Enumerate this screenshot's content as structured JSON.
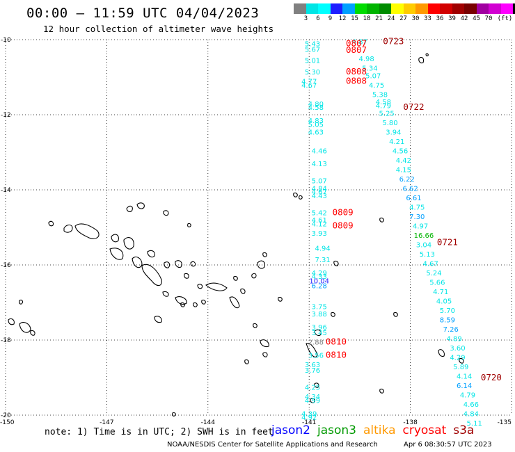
{
  "header": {
    "title": "00:00 – 11:59 UTC 04/04/2023",
    "subtitle": "12 hour collection of altimeter wave heights"
  },
  "colorbar": {
    "colors": [
      "#808080",
      "#00e5e5",
      "#00ffff",
      "#1e1eff",
      "#00a0ff",
      "#00dc00",
      "#00b400",
      "#008c00",
      "#ffff00",
      "#ffcc00",
      "#ff9900",
      "#ff0000",
      "#d20000",
      "#a00000",
      "#780000",
      "#a000a0",
      "#d200d2",
      "#ff00ff",
      "#000000"
    ],
    "labels": [
      "3",
      "6",
      "9",
      "12",
      "15",
      "18",
      "21",
      "24",
      "27",
      "30",
      "33",
      "36",
      "39",
      "42",
      "45",
      "70",
      "(ft)"
    ]
  },
  "axes": {
    "x_ticks": [
      "-150",
      "-147",
      "-144",
      "-141",
      "-138",
      "-135"
    ],
    "y_ticks": [
      "-10",
      "-12",
      "-14",
      "-16",
      "-18",
      "-20"
    ],
    "lon_range": [
      -150,
      -135
    ],
    "lat_range": [
      -20,
      -10
    ]
  },
  "swh_readings": [
    {
      "lon": -140.9,
      "lat": -10.1,
      "v": "5.43",
      "c": "#00e5e5"
    },
    {
      "lon": -140.9,
      "lat": -10.25,
      "v": "5.67",
      "c": "#00e5e5"
    },
    {
      "lon": -140.9,
      "lat": -10.55,
      "v": "5.01",
      "c": "#00e5e5"
    },
    {
      "lon": -140.9,
      "lat": -10.85,
      "v": "5.30",
      "c": "#00e5e5"
    },
    {
      "lon": -141.0,
      "lat": -11.1,
      "v": "4.77",
      "c": "#00e5e5"
    },
    {
      "lon": -141.0,
      "lat": -11.2,
      "v": "4.67",
      "c": "#00e5e5"
    },
    {
      "lon": -140.8,
      "lat": -11.7,
      "v": "4.80",
      "c": "#00e5e5"
    },
    {
      "lon": -140.8,
      "lat": -11.8,
      "v": "4.58",
      "c": "#00e5e5"
    },
    {
      "lon": -140.8,
      "lat": -12.15,
      "v": "4.83",
      "c": "#00e5e5"
    },
    {
      "lon": -140.8,
      "lat": -12.25,
      "v": "5.05",
      "c": "#00e5e5"
    },
    {
      "lon": -140.8,
      "lat": -12.45,
      "v": "4.63",
      "c": "#00e5e5"
    },
    {
      "lon": -140.7,
      "lat": -12.95,
      "v": "4.46",
      "c": "#00e5e5"
    },
    {
      "lon": -140.7,
      "lat": -13.3,
      "v": "4.13",
      "c": "#00e5e5"
    },
    {
      "lon": -140.7,
      "lat": -13.75,
      "v": "5.07",
      "c": "#00e5e5"
    },
    {
      "lon": -140.7,
      "lat": -13.95,
      "v": "4.84",
      "c": "#00e5e5"
    },
    {
      "lon": -140.7,
      "lat": -14.05,
      "v": "4.67",
      "c": "#00e5e5"
    },
    {
      "lon": -140.7,
      "lat": -14.15,
      "v": "4.43",
      "c": "#00e5e5"
    },
    {
      "lon": -140.7,
      "lat": -14.6,
      "v": "5.42",
      "c": "#00e5e5"
    },
    {
      "lon": -140.7,
      "lat": -14.8,
      "v": "4.61",
      "c": "#00e5e5"
    },
    {
      "lon": -140.7,
      "lat": -14.9,
      "v": "4.12",
      "c": "#00e5e5"
    },
    {
      "lon": -140.7,
      "lat": -15.15,
      "v": "3.93",
      "c": "#00e5e5"
    },
    {
      "lon": -140.6,
      "lat": -15.55,
      "v": "4.94",
      "c": "#00e5e5"
    },
    {
      "lon": -140.6,
      "lat": -15.85,
      "v": "7.31",
      "c": "#00e5e5"
    },
    {
      "lon": -140.7,
      "lat": -16.2,
      "v": "4.29",
      "c": "#00e5e5"
    },
    {
      "lon": -140.7,
      "lat": -16.3,
      "v": "4.33",
      "c": "#00e5e5"
    },
    {
      "lon": -140.7,
      "lat": -16.42,
      "v": "10.04",
      "c": "#1e1eff"
    },
    {
      "lon": -140.7,
      "lat": -16.55,
      "v": "6.28",
      "c": "#00a0ff"
    },
    {
      "lon": -140.7,
      "lat": -17.1,
      "v": "3.75",
      "c": "#00e5e5"
    },
    {
      "lon": -140.7,
      "lat": -17.3,
      "v": "3.88",
      "c": "#00e5e5"
    },
    {
      "lon": -140.7,
      "lat": -17.65,
      "v": "3.96",
      "c": "#00e5e5"
    },
    {
      "lon": -140.7,
      "lat": -17.8,
      "v": "3.45",
      "c": "#00e5e5"
    },
    {
      "lon": -140.8,
      "lat": -18.05,
      "v": "2.88",
      "c": "#808080"
    },
    {
      "lon": -140.8,
      "lat": -18.4,
      "v": "3.56",
      "c": "#00e5e5"
    },
    {
      "lon": -140.9,
      "lat": -18.65,
      "v": "3.63",
      "c": "#00e5e5"
    },
    {
      "lon": -140.9,
      "lat": -18.8,
      "v": "3.76",
      "c": "#00e5e5"
    },
    {
      "lon": -140.9,
      "lat": -19.25,
      "v": "4.25",
      "c": "#00e5e5"
    },
    {
      "lon": -140.9,
      "lat": -19.5,
      "v": "4.34",
      "c": "#00e5e5"
    },
    {
      "lon": -140.9,
      "lat": -19.6,
      "v": "4.99",
      "c": "#00e5e5"
    },
    {
      "lon": -141.0,
      "lat": -19.95,
      "v": "4.39",
      "c": "#00e5e5"
    },
    {
      "lon": -141.0,
      "lat": -20.05,
      "v": "4.92",
      "c": "#00e5e5"
    },
    {
      "lon": -139.5,
      "lat": -10.05,
      "v": "4.87",
      "c": "#00e5e5"
    },
    {
      "lon": -139.3,
      "lat": -10.5,
      "v": "4.98",
      "c": "#00e5e5"
    },
    {
      "lon": -139.2,
      "lat": -10.75,
      "v": "5.34",
      "c": "#00e5e5"
    },
    {
      "lon": -139.1,
      "lat": -10.95,
      "v": "5.07",
      "c": "#00e5e5"
    },
    {
      "lon": -139.0,
      "lat": -11.2,
      "v": "4.75",
      "c": "#00e5e5"
    },
    {
      "lon": -138.9,
      "lat": -11.45,
      "v": "5.38",
      "c": "#00e5e5"
    },
    {
      "lon": -138.8,
      "lat": -11.65,
      "v": "4.58",
      "c": "#00e5e5"
    },
    {
      "lon": -138.8,
      "lat": -11.75,
      "v": "4.79",
      "c": "#00e5e5"
    },
    {
      "lon": -138.7,
      "lat": -11.95,
      "v": "5.25",
      "c": "#00e5e5"
    },
    {
      "lon": -138.6,
      "lat": -12.2,
      "v": "5.80",
      "c": "#00e5e5"
    },
    {
      "lon": -138.5,
      "lat": -12.45,
      "v": "3.94",
      "c": "#00e5e5"
    },
    {
      "lon": -138.4,
      "lat": -12.7,
      "v": "4.21",
      "c": "#00e5e5"
    },
    {
      "lon": -138.3,
      "lat": -12.95,
      "v": "4.56",
      "c": "#00e5e5"
    },
    {
      "lon": -138.2,
      "lat": -13.2,
      "v": "4.42",
      "c": "#00e5e5"
    },
    {
      "lon": -138.2,
      "lat": -13.45,
      "v": "4.15",
      "c": "#00e5e5"
    },
    {
      "lon": -138.1,
      "lat": -13.7,
      "v": "6.22",
      "c": "#00a0ff"
    },
    {
      "lon": -138.0,
      "lat": -13.95,
      "v": "6.62",
      "c": "#00a0ff"
    },
    {
      "lon": -137.9,
      "lat": -14.2,
      "v": "6.61",
      "c": "#00a0ff"
    },
    {
      "lon": -137.8,
      "lat": -14.45,
      "v": "4.75",
      "c": "#00e5e5"
    },
    {
      "lon": -137.8,
      "lat": -14.7,
      "v": "7.30",
      "c": "#00a0ff"
    },
    {
      "lon": -137.7,
      "lat": -14.95,
      "v": "4.97",
      "c": "#00e5e5"
    },
    {
      "lon": -137.6,
      "lat": -15.2,
      "v": "16.66",
      "c": "#00b400"
    },
    {
      "lon": -137.6,
      "lat": -15.45,
      "v": "3.04",
      "c": "#00e5e5"
    },
    {
      "lon": -137.5,
      "lat": -15.7,
      "v": "5.13",
      "c": "#00e5e5"
    },
    {
      "lon": -137.4,
      "lat": -15.95,
      "v": "4.67",
      "c": "#00e5e5"
    },
    {
      "lon": -137.3,
      "lat": -16.2,
      "v": "5.24",
      "c": "#00e5e5"
    },
    {
      "lon": -137.2,
      "lat": -16.45,
      "v": "5.66",
      "c": "#00e5e5"
    },
    {
      "lon": -137.1,
      "lat": -16.7,
      "v": "4.71",
      "c": "#00e5e5"
    },
    {
      "lon": -137.0,
      "lat": -16.95,
      "v": "4.05",
      "c": "#00e5e5"
    },
    {
      "lon": -136.9,
      "lat": -17.2,
      "v": "5.70",
      "c": "#00e5e5"
    },
    {
      "lon": -136.9,
      "lat": -17.45,
      "v": "8.59",
      "c": "#00a0ff"
    },
    {
      "lon": -136.8,
      "lat": -17.7,
      "v": "7.26",
      "c": "#00a0ff"
    },
    {
      "lon": -136.7,
      "lat": -17.95,
      "v": "4.89",
      "c": "#00e5e5"
    },
    {
      "lon": -136.6,
      "lat": -18.2,
      "v": "3.60",
      "c": "#00e5e5"
    },
    {
      "lon": -136.6,
      "lat": -18.45,
      "v": "4.29",
      "c": "#00e5e5"
    },
    {
      "lon": -136.5,
      "lat": -18.7,
      "v": "5.89",
      "c": "#00e5e5"
    },
    {
      "lon": -136.4,
      "lat": -18.95,
      "v": "4.14",
      "c": "#00e5e5"
    },
    {
      "lon": -136.4,
      "lat": -19.2,
      "v": "6.14",
      "c": "#00a0ff"
    },
    {
      "lon": -136.3,
      "lat": -19.45,
      "v": "4.79",
      "c": "#00e5e5"
    },
    {
      "lon": -136.2,
      "lat": -19.7,
      "v": "4.66",
      "c": "#00e5e5"
    },
    {
      "lon": -136.2,
      "lat": -19.95,
      "v": "4.84",
      "c": "#00e5e5"
    },
    {
      "lon": -136.1,
      "lat": -20.2,
      "v": "5.11",
      "c": "#00e5e5"
    }
  ],
  "pass_times": [
    {
      "lon": -139.6,
      "lat": -10.1,
      "t": "0807",
      "c": "#ff0000"
    },
    {
      "lon": -139.6,
      "lat": -10.28,
      "t": "0807",
      "c": "#ff0000"
    },
    {
      "lon": -139.6,
      "lat": -10.85,
      "t": "0808",
      "c": "#ff0000"
    },
    {
      "lon": -139.6,
      "lat": -11.1,
      "t": "0808",
      "c": "#ff0000"
    },
    {
      "lon": -140.0,
      "lat": -14.6,
      "t": "0809",
      "c": "#ff0000"
    },
    {
      "lon": -140.0,
      "lat": -14.95,
      "t": "0809",
      "c": "#ff0000"
    },
    {
      "lon": -140.2,
      "lat": -18.05,
      "t": "0810",
      "c": "#ff0000"
    },
    {
      "lon": -140.2,
      "lat": -18.4,
      "t": "0810",
      "c": "#ff0000"
    },
    {
      "lon": -138.5,
      "lat": -10.05,
      "t": "0723",
      "c": "#a00000"
    },
    {
      "lon": -137.9,
      "lat": -11.8,
      "t": "0722",
      "c": "#a00000"
    },
    {
      "lon": -136.9,
      "lat": -15.4,
      "t": "0721",
      "c": "#a00000"
    },
    {
      "lon": -135.6,
      "lat": -19.0,
      "t": "0720",
      "c": "#a00000"
    }
  ],
  "footer": {
    "note": "note: 1) Time is in UTC; 2) SWH is in feet",
    "credit": "NOAA/NESDIS Center for Satellite Applications and Research",
    "timestamp": "Apr  6 08:30:57 UTC 2023",
    "legend": [
      {
        "name": "jason2",
        "color": "#0000ff"
      },
      {
        "name": "jason3",
        "color": "#009900"
      },
      {
        "name": "altika",
        "color": "#ff9900"
      },
      {
        "name": "cryosat",
        "color": "#ff0000"
      },
      {
        "name": "s3a",
        "color": "#a00000"
      }
    ]
  }
}
